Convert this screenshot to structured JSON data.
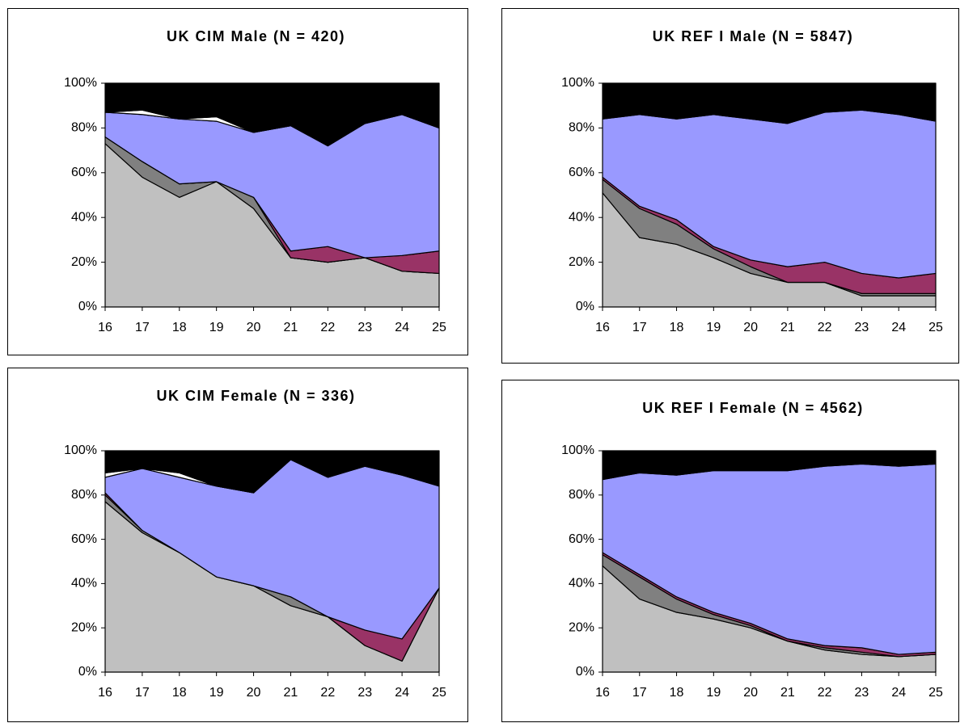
{
  "chart_data": [
    {
      "type": "area",
      "stacked": true,
      "title": "UK CIM Male (N = 420)",
      "categories": [
        "16",
        "17",
        "18",
        "19",
        "20",
        "21",
        "22",
        "23",
        "24",
        "25"
      ],
      "series": [
        {
          "color": "#c0c0c0",
          "values": [
            73,
            58,
            49,
            56,
            44,
            22,
            20,
            22,
            16,
            15
          ]
        },
        {
          "color": "#808080",
          "values": [
            3,
            7,
            6,
            0,
            5,
            0,
            0,
            0,
            0,
            0
          ]
        },
        {
          "color": "#993366",
          "values": [
            0,
            0,
            0,
            0,
            0,
            3,
            7,
            0,
            7,
            10
          ]
        },
        {
          "color": "#9999ff",
          "values": [
            11,
            21,
            29,
            27,
            29,
            56,
            45,
            60,
            63,
            55
          ]
        },
        {
          "color": "#ffffff",
          "values": [
            0,
            2,
            0,
            2,
            0,
            0,
            0,
            0,
            0,
            0
          ]
        },
        {
          "color": "#000000",
          "values": [
            13,
            12,
            16,
            15,
            22,
            19,
            28,
            18,
            14,
            20
          ]
        }
      ],
      "ylim": [
        0,
        100
      ],
      "yticks": [
        {
          "value": 0,
          "label": "0%"
        },
        {
          "value": 20,
          "label": "20%"
        },
        {
          "value": 40,
          "label": "40%"
        },
        {
          "value": 60,
          "label": "60%"
        },
        {
          "value": 80,
          "label": "80%"
        },
        {
          "value": 100,
          "label": "100%"
        }
      ]
    },
    {
      "type": "area",
      "stacked": true,
      "title": "UK REF I Male (N = 5847)",
      "categories": [
        "16",
        "17",
        "18",
        "19",
        "20",
        "21",
        "22",
        "23",
        "24",
        "25"
      ],
      "series": [
        {
          "color": "#c0c0c0",
          "values": [
            51,
            31,
            28,
            22,
            15,
            11,
            11,
            5,
            5,
            5
          ]
        },
        {
          "color": "#808080",
          "values": [
            6,
            13,
            9,
            4,
            3,
            0,
            0,
            1,
            1,
            1
          ]
        },
        {
          "color": "#993366",
          "values": [
            1,
            1,
            2,
            1,
            3,
            7,
            9,
            9,
            7,
            9
          ]
        },
        {
          "color": "#9999ff",
          "values": [
            26,
            41,
            45,
            59,
            63,
            64,
            67,
            73,
            73,
            68
          ]
        },
        {
          "color": "#000000",
          "values": [
            16,
            14,
            16,
            14,
            16,
            18,
            13,
            12,
            14,
            17
          ]
        }
      ],
      "ylim": [
        0,
        100
      ],
      "yticks": [
        {
          "value": 0,
          "label": "0%"
        },
        {
          "value": 20,
          "label": "20%"
        },
        {
          "value": 40,
          "label": "40%"
        },
        {
          "value": 60,
          "label": "60%"
        },
        {
          "value": 80,
          "label": "80%"
        },
        {
          "value": 100,
          "label": "100%"
        }
      ]
    },
    {
      "type": "area",
      "stacked": true,
      "title": "UK CIM Female (N = 336)",
      "categories": [
        "16",
        "17",
        "18",
        "19",
        "20",
        "21",
        "22",
        "23",
        "24",
        "25"
      ],
      "series": [
        {
          "color": "#c0c0c0",
          "values": [
            77,
            63,
            54,
            43,
            39,
            30,
            25,
            12,
            5,
            38
          ]
        },
        {
          "color": "#808080",
          "values": [
            3,
            1,
            0,
            0,
            0,
            4,
            0,
            0,
            0,
            0
          ]
        },
        {
          "color": "#993366",
          "values": [
            1,
            0,
            0,
            0,
            0,
            0,
            0,
            7,
            10,
            0
          ]
        },
        {
          "color": "#9999ff",
          "values": [
            7,
            28,
            34,
            41,
            42,
            62,
            63,
            74,
            74,
            46
          ]
        },
        {
          "color": "#ffffff",
          "values": [
            2,
            0,
            2,
            0,
            0,
            0,
            0,
            0,
            0,
            0
          ]
        },
        {
          "color": "#000000",
          "values": [
            10,
            8,
            10,
            16,
            19,
            4,
            12,
            7,
            11,
            16
          ]
        }
      ],
      "ylim": [
        0,
        100
      ],
      "yticks": [
        {
          "value": 0,
          "label": "0%"
        },
        {
          "value": 20,
          "label": "20%"
        },
        {
          "value": 40,
          "label": "40%"
        },
        {
          "value": 60,
          "label": "60%"
        },
        {
          "value": 80,
          "label": "80%"
        },
        {
          "value": 100,
          "label": "100%"
        }
      ]
    },
    {
      "type": "area",
      "stacked": true,
      "title": "UK REF I Female (N = 4562)",
      "categories": [
        "16",
        "17",
        "18",
        "19",
        "20",
        "21",
        "22",
        "23",
        "24",
        "25"
      ],
      "series": [
        {
          "color": "#c0c0c0",
          "values": [
            48,
            33,
            27,
            24,
            20,
            14,
            10,
            8,
            7,
            8
          ]
        },
        {
          "color": "#808080",
          "values": [
            5,
            10,
            6,
            2,
            1,
            0,
            1,
            1,
            0,
            0
          ]
        },
        {
          "color": "#993366",
          "values": [
            1,
            1,
            1,
            1,
            1,
            1,
            1,
            2,
            1,
            1
          ]
        },
        {
          "color": "#9999ff",
          "values": [
            33,
            46,
            55,
            64,
            69,
            76,
            81,
            83,
            85,
            85
          ]
        },
        {
          "color": "#000000",
          "values": [
            13,
            10,
            11,
            9,
            9,
            9,
            7,
            6,
            7,
            6
          ]
        }
      ],
      "ylim": [
        0,
        100
      ],
      "yticks": [
        {
          "value": 0,
          "label": "0%"
        },
        {
          "value": 20,
          "label": "20%"
        },
        {
          "value": 40,
          "label": "40%"
        },
        {
          "value": 60,
          "label": "60%"
        },
        {
          "value": 80,
          "label": "80%"
        },
        {
          "value": 100,
          "label": "100%"
        }
      ]
    }
  ]
}
